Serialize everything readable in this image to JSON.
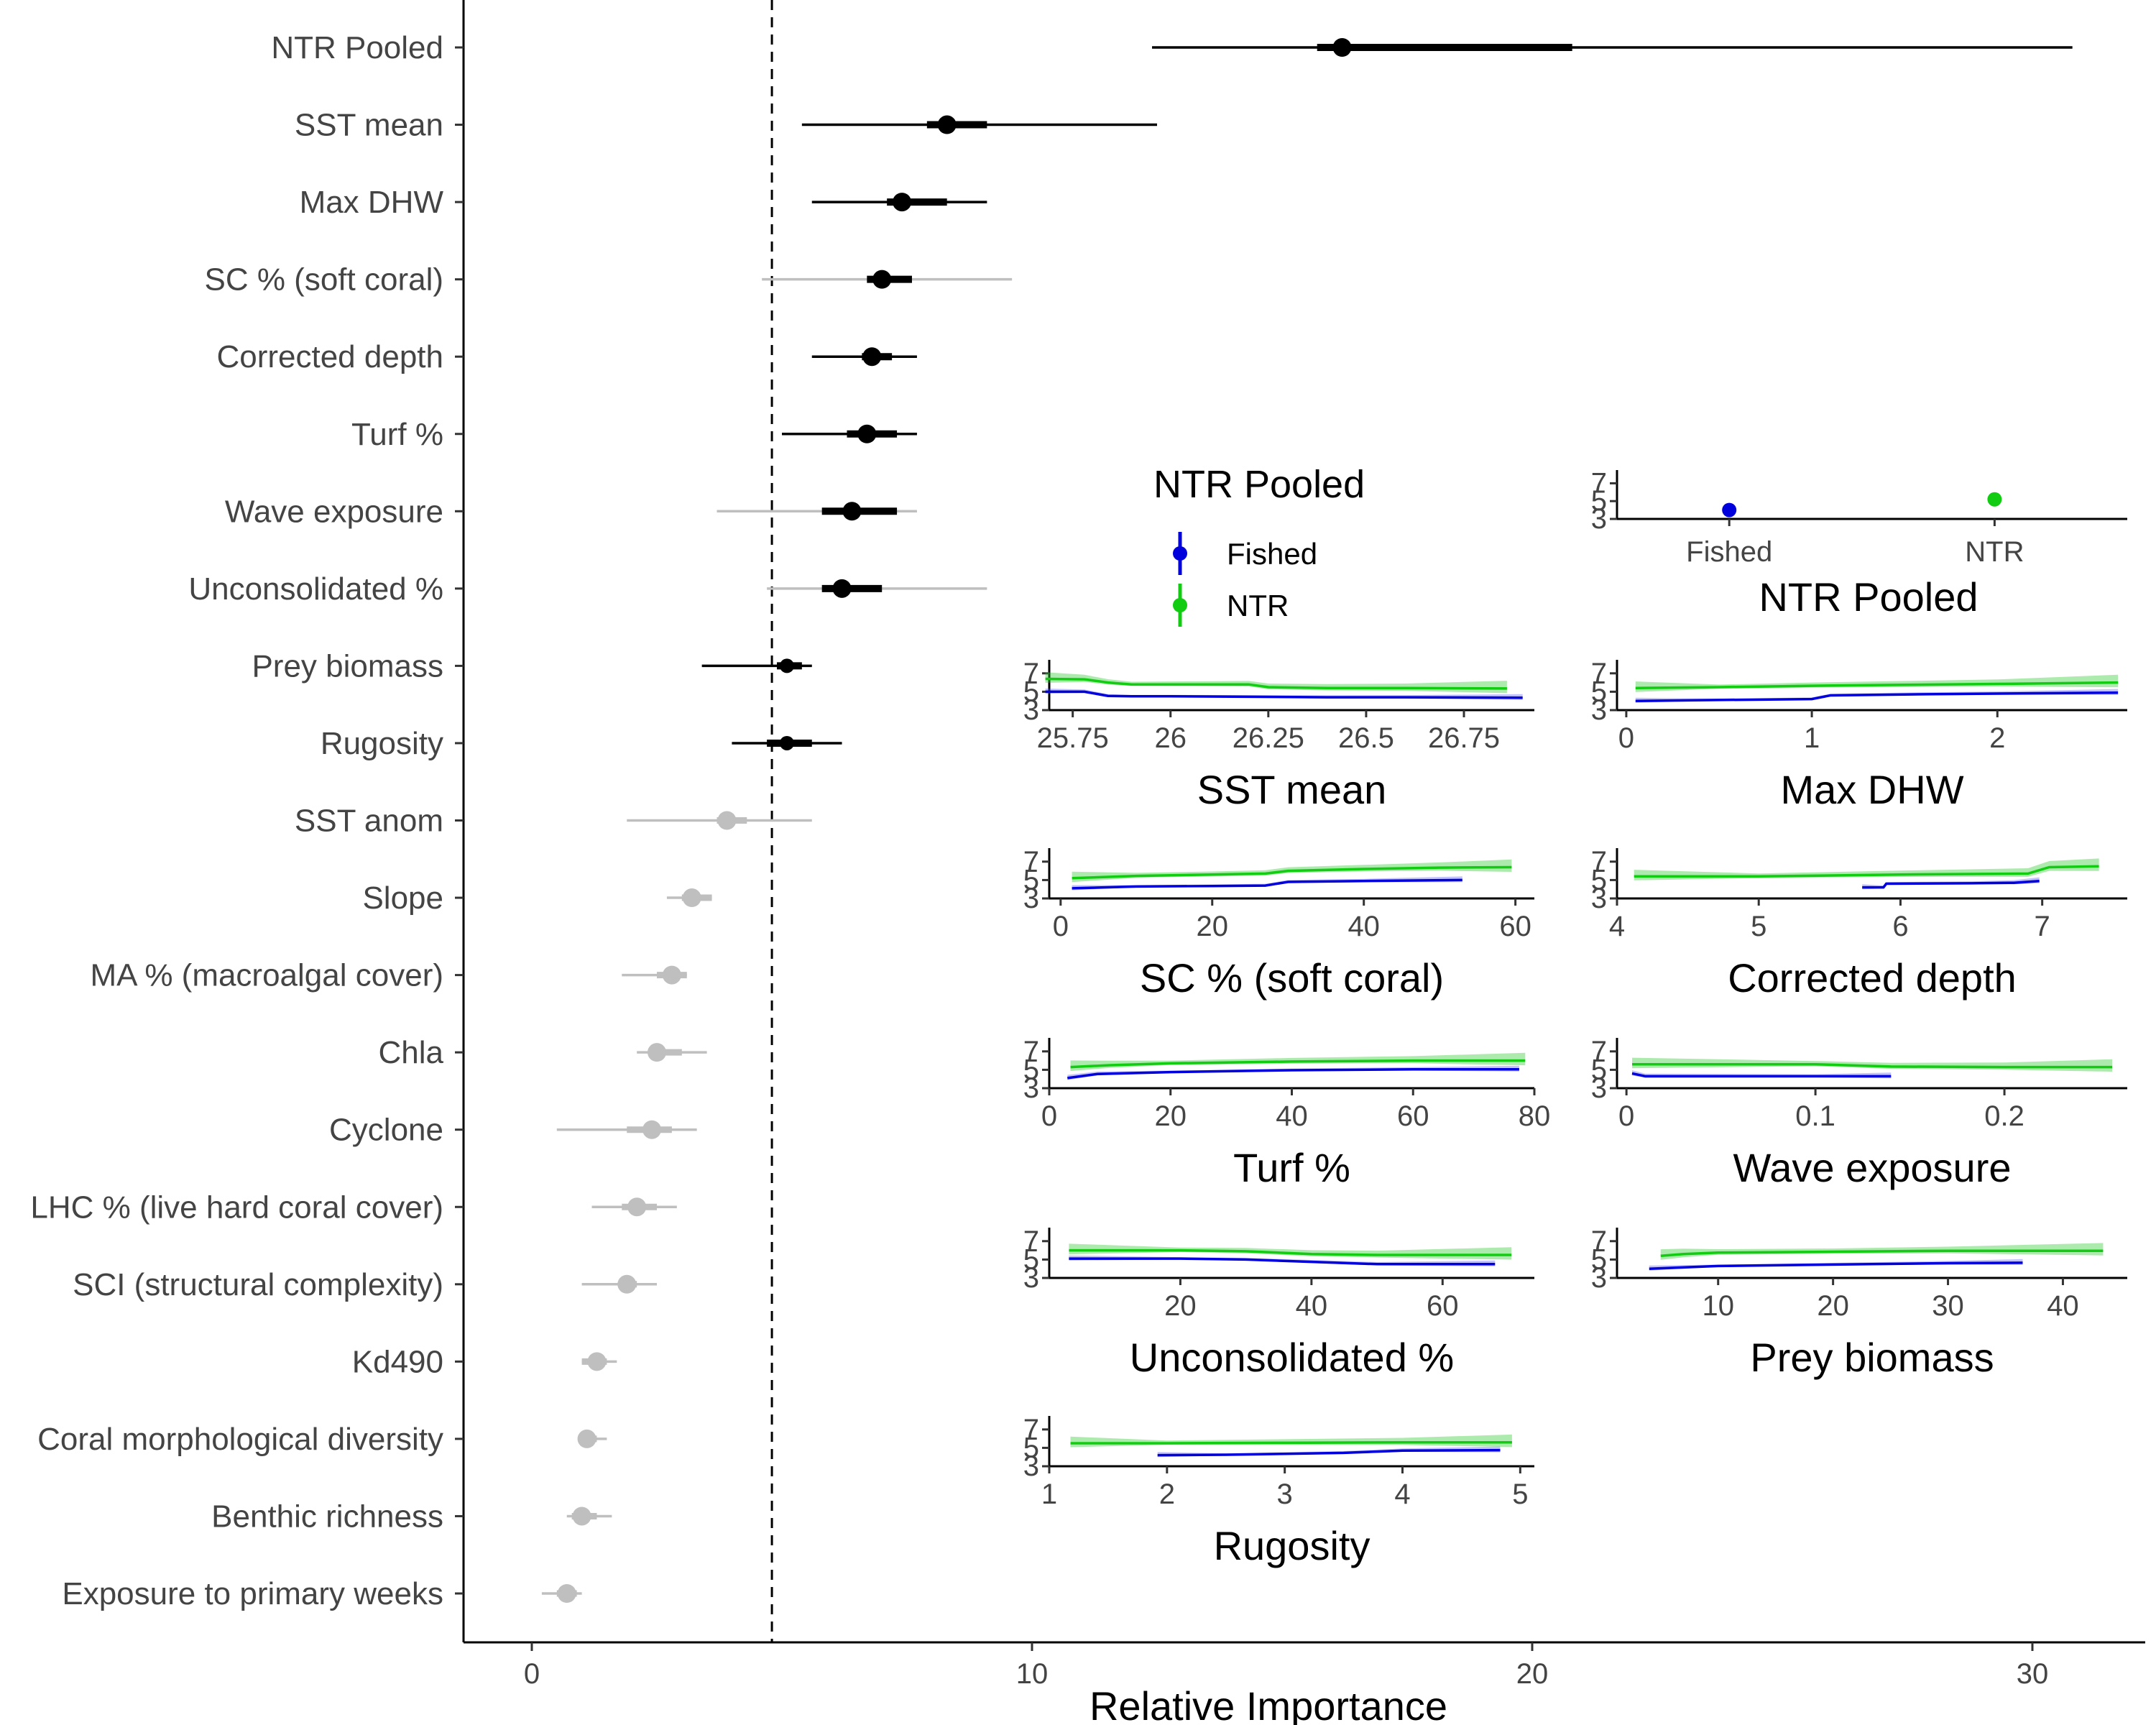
{
  "chart_data": [
    {
      "type": "forest",
      "xlabel": "Relative Importance",
      "xlim": [
        -1.3,
        32.4
      ],
      "xticks": [
        0,
        10,
        20,
        30
      ],
      "reference_line": 4.8,
      "colors": {
        "significant": "#000000",
        "non_significant": "#bfbfbf"
      },
      "rows": [
        {
          "label": "NTR Pooled",
          "median": 16.2,
          "inner": [
            15.7,
            20.8
          ],
          "outer": [
            12.4,
            30.8
          ],
          "sig": true
        },
        {
          "label": "SST mean",
          "median": 8.3,
          "inner": [
            7.9,
            9.1
          ],
          "outer": [
            5.4,
            12.5
          ],
          "sig": true
        },
        {
          "label": "Max DHW",
          "median": 7.4,
          "inner": [
            7.1,
            8.3
          ],
          "outer": [
            5.6,
            9.1
          ],
          "sig": true
        },
        {
          "label": "SC % (soft coral)",
          "median": 7.0,
          "inner": [
            6.7,
            7.6
          ],
          "outer": [
            4.6,
            9.6
          ],
          "sig": true,
          "outer_sig": false
        },
        {
          "label": "Corrected depth",
          "median": 6.8,
          "inner": [
            6.6,
            7.2
          ],
          "outer": [
            5.6,
            7.7
          ],
          "sig": true
        },
        {
          "label": "Turf %",
          "median": 6.7,
          "inner": [
            6.3,
            7.3
          ],
          "outer": [
            5.0,
            7.7
          ],
          "sig": true
        },
        {
          "label": "Wave exposure",
          "median": 6.4,
          "inner": [
            5.8,
            7.3
          ],
          "outer": [
            3.7,
            7.7
          ],
          "sig": true,
          "outer_sig": false
        },
        {
          "label": "Unconsolidated %",
          "median": 6.2,
          "inner": [
            5.8,
            7.0
          ],
          "outer": [
            4.7,
            9.1
          ],
          "sig": true,
          "outer_sig": false
        },
        {
          "label": "Prey biomass",
          "median": 5.1,
          "inner": [
            4.9,
            5.4
          ],
          "outer": [
            3.4,
            5.6
          ],
          "sig": true,
          "small": true
        },
        {
          "label": "Rugosity",
          "median": 5.1,
          "inner": [
            4.7,
            5.6
          ],
          "outer": [
            4.0,
            6.2
          ],
          "sig": true,
          "small": true
        },
        {
          "label": "SST anom",
          "median": 3.9,
          "inner": [
            3.7,
            4.3
          ],
          "outer": [
            1.9,
            5.6
          ],
          "sig": false
        },
        {
          "label": "Slope",
          "median": 3.2,
          "inner": [
            3.0,
            3.6
          ],
          "outer": [
            2.7,
            3.6
          ],
          "sig": false
        },
        {
          "label": "MA % (macroalgal cover)",
          "median": 2.8,
          "inner": [
            2.5,
            3.1
          ],
          "outer": [
            1.8,
            3.1
          ],
          "sig": false
        },
        {
          "label": "Chla",
          "median": 2.5,
          "inner": [
            2.4,
            3.0
          ],
          "outer": [
            2.1,
            3.5
          ],
          "sig": false
        },
        {
          "label": "Cyclone",
          "median": 2.4,
          "inner": [
            1.9,
            2.8
          ],
          "outer": [
            0.5,
            3.3
          ],
          "sig": false
        },
        {
          "label": "LHC % (live hard coral cover)",
          "median": 2.1,
          "inner": [
            1.8,
            2.5
          ],
          "outer": [
            1.2,
            2.9
          ],
          "sig": false
        },
        {
          "label": "SCI (structural complexity)",
          "median": 1.9,
          "inner": [
            1.8,
            2.1
          ],
          "outer": [
            1.0,
            2.5
          ],
          "sig": false
        },
        {
          "label": "Kd490",
          "median": 1.3,
          "inner": [
            1.0,
            1.5
          ],
          "outer": [
            1.0,
            1.7
          ],
          "sig": false
        },
        {
          "label": "Coral morphological diversity",
          "median": 1.1,
          "inner": [
            1.0,
            1.3
          ],
          "outer": [
            1.0,
            1.5
          ],
          "sig": false
        },
        {
          "label": "Benthic richness",
          "median": 1.0,
          "inner": [
            0.8,
            1.3
          ],
          "outer": [
            0.7,
            1.6
          ],
          "sig": false
        },
        {
          "label": "Exposure to primary weeks",
          "median": 0.7,
          "inner": [
            0.5,
            0.9
          ],
          "outer": [
            0.2,
            1.0
          ],
          "sig": false
        }
      ]
    },
    {
      "type": "point",
      "title": "NTR Pooled",
      "categories": [
        "Fished",
        "NTR"
      ],
      "values": [
        4.0,
        5.2
      ],
      "yticks": [
        3,
        5,
        7
      ],
      "ylim": [
        3,
        8
      ]
    },
    {
      "type": "line",
      "title": "SST mean",
      "xlim": [
        25.69,
        26.93
      ],
      "xticks": [
        25.75,
        26.0,
        26.25,
        26.5,
        26.75
      ],
      "ylim": [
        3,
        8
      ],
      "yticks": [
        3,
        5,
        7
      ],
      "series": [
        {
          "name": "Fished",
          "x": [
            25.68,
            25.78,
            25.84,
            25.9,
            26.0,
            26.2,
            26.4,
            26.6,
            26.9
          ],
          "y": [
            5.0,
            5.0,
            4.55,
            4.5,
            4.5,
            4.45,
            4.4,
            4.4,
            4.35
          ]
        },
        {
          "name": "NTR",
          "x": [
            25.68,
            25.78,
            25.84,
            25.9,
            26.0,
            26.2,
            26.25,
            26.4,
            26.6,
            26.86
          ],
          "y": [
            6.4,
            6.35,
            6.0,
            5.8,
            5.8,
            5.8,
            5.5,
            5.4,
            5.4,
            5.35
          ]
        }
      ]
    },
    {
      "type": "line",
      "title": "Max DHW",
      "xlim": [
        -0.05,
        2.7
      ],
      "xticks": [
        0,
        1,
        2
      ],
      "ylim": [
        3,
        8
      ],
      "yticks": [
        3,
        5,
        7
      ],
      "series": [
        {
          "name": "Fished",
          "x": [
            0.05,
            0.5,
            1.0,
            1.1,
            1.5,
            2.0,
            2.65
          ],
          "y": [
            4.0,
            4.1,
            4.2,
            4.6,
            4.7,
            4.8,
            4.9
          ]
        },
        {
          "name": "NTR",
          "x": [
            0.05,
            0.5,
            1.0,
            1.5,
            2.0,
            2.65
          ],
          "y": [
            5.4,
            5.5,
            5.65,
            5.75,
            5.85,
            6.0
          ]
        }
      ]
    },
    {
      "type": "line",
      "title": "SC % (soft coral)",
      "xlim": [
        -1.5,
        62.5
      ],
      "xticks": [
        0,
        20,
        40,
        60
      ],
      "ylim": [
        3,
        8
      ],
      "yticks": [
        3,
        5,
        7
      ],
      "series": [
        {
          "name": "Fished",
          "x": [
            1.5,
            10,
            20,
            27,
            30,
            40,
            53
          ],
          "y": [
            4.1,
            4.3,
            4.35,
            4.4,
            4.8,
            4.9,
            5.0
          ]
        },
        {
          "name": "NTR",
          "x": [
            1.5,
            10,
            20,
            27,
            30,
            40,
            50,
            59.5
          ],
          "y": [
            5.2,
            5.45,
            5.6,
            5.7,
            6.0,
            6.2,
            6.35,
            6.4
          ]
        }
      ]
    },
    {
      "type": "line",
      "title": "Corrected depth",
      "xlim": [
        4.0,
        7.6
      ],
      "xticks": [
        4,
        5,
        6,
        7
      ],
      "ylim": [
        3,
        8
      ],
      "yticks": [
        3,
        5,
        7
      ],
      "series": [
        {
          "name": "Fished",
          "x": [
            5.73,
            5.88,
            5.9,
            6.5,
            6.8,
            6.98
          ],
          "y": [
            4.2,
            4.2,
            4.6,
            4.65,
            4.7,
            4.9
          ]
        },
        {
          "name": "NTR",
          "x": [
            4.12,
            5.0,
            6.0,
            6.9,
            7.05,
            7.4
          ],
          "y": [
            5.4,
            5.4,
            5.6,
            5.7,
            6.4,
            6.5
          ]
        }
      ]
    },
    {
      "type": "line",
      "title": "Turf %",
      "xlim": [
        0,
        80
      ],
      "xticks": [
        0,
        20,
        40,
        60,
        80
      ],
      "ylim": [
        3,
        8
      ],
      "yticks": [
        3,
        5,
        7
      ],
      "series": [
        {
          "name": "Fished",
          "x": [
            3,
            8,
            20,
            40,
            60,
            77.5
          ],
          "y": [
            4.1,
            4.55,
            4.75,
            4.95,
            5.05,
            5.05
          ]
        },
        {
          "name": "NTR",
          "x": [
            3.5,
            10,
            20,
            40,
            60,
            78.5
          ],
          "y": [
            5.3,
            5.5,
            5.7,
            5.9,
            6.0,
            6.0
          ]
        }
      ]
    },
    {
      "type": "line",
      "title": "Wave exposure",
      "xlim": [
        -0.005,
        0.265
      ],
      "xticks": [
        0.0,
        0.1,
        0.2
      ],
      "ylim": [
        3,
        8
      ],
      "yticks": [
        3,
        5,
        7
      ],
      "series": [
        {
          "name": "Fished",
          "x": [
            0.003,
            0.01,
            0.1,
            0.14
          ],
          "y": [
            4.6,
            4.3,
            4.3,
            4.3
          ]
        },
        {
          "name": "NTR",
          "x": [
            0.003,
            0.1,
            0.14,
            0.2,
            0.257
          ],
          "y": [
            5.6,
            5.6,
            5.35,
            5.3,
            5.3
          ]
        }
      ]
    },
    {
      "type": "line",
      "title": "Unconsolidated %",
      "xlim": [
        0,
        74
      ],
      "xticks": [
        20,
        40,
        60
      ],
      "ylim": [
        3,
        8
      ],
      "yticks": [
        3,
        5,
        7
      ],
      "series": [
        {
          "name": "Fished",
          "x": [
            3,
            20,
            30,
            40,
            50,
            68
          ],
          "y": [
            5.1,
            5.1,
            5.0,
            4.75,
            4.5,
            4.5
          ]
        },
        {
          "name": "NTR",
          "x": [
            3,
            20,
            30,
            40,
            50,
            70.5
          ],
          "y": [
            6.0,
            6.0,
            5.9,
            5.6,
            5.5,
            5.5
          ]
        }
      ]
    },
    {
      "type": "line",
      "title": "Prey biomass",
      "xlim": [
        1.2,
        45.6
      ],
      "xticks": [
        10,
        20,
        30,
        40
      ],
      "ylim": [
        3,
        8
      ],
      "yticks": [
        3,
        5,
        7
      ],
      "series": [
        {
          "name": "Fished",
          "x": [
            4,
            10,
            20,
            30,
            36.5
          ],
          "y": [
            4.0,
            4.3,
            4.45,
            4.6,
            4.65
          ]
        },
        {
          "name": "NTR",
          "x": [
            5,
            7,
            10,
            20,
            30,
            43.5
          ],
          "y": [
            5.4,
            5.6,
            5.75,
            5.85,
            5.95,
            5.95
          ]
        }
      ]
    },
    {
      "type": "line",
      "title": "Rugosity",
      "xlim": [
        1.0,
        5.12
      ],
      "xticks": [
        1,
        2,
        3,
        4,
        5
      ],
      "ylim": [
        3,
        8
      ],
      "yticks": [
        3,
        5,
        7
      ],
      "series": [
        {
          "name": "Fished",
          "x": [
            1.92,
            2.5,
            3.0,
            3.5,
            4.0,
            4.83
          ],
          "y": [
            4.2,
            4.25,
            4.35,
            4.45,
            4.7,
            4.75
          ]
        },
        {
          "name": "NTR",
          "x": [
            1.18,
            2.0,
            3.0,
            4.0,
            4.93
          ],
          "y": [
            5.5,
            5.5,
            5.55,
            5.6,
            5.6
          ]
        }
      ]
    }
  ],
  "legend": {
    "title": "NTR Pooled",
    "items": [
      {
        "label": "Fished",
        "color": "#0000dd"
      },
      {
        "label": "NTR",
        "color": "#11cc11"
      }
    ]
  }
}
